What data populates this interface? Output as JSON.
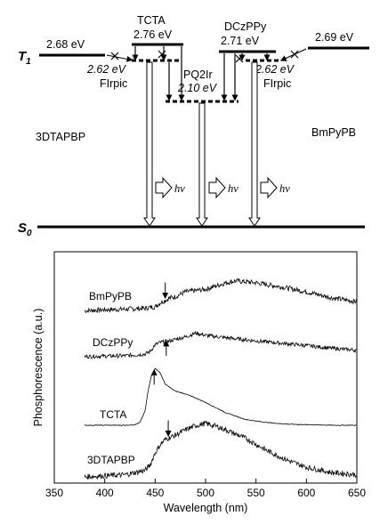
{
  "diagram": {
    "levels": {
      "dtapbp_t1": "2.68 eV",
      "tcta_t1": "2.76 eV",
      "dczppy_t1": "2.71 eV",
      "bmpypb_t1": "2.69 eV",
      "firpic_left": "2.62 eV",
      "firpic_right": "2.62 eV",
      "pq2ir": "2.10 eV"
    },
    "labels": {
      "tcta": "TCTA",
      "dczppy": "DCzPPy",
      "firpic_left": "FIrpic",
      "firpic_right": "FIrpic",
      "pq2ir": "PQ2Ir",
      "dtapbp": "3DTAPBP",
      "bmpypb": "BmPyPB",
      "hv": "hν",
      "t1_main": "T",
      "t1_sub": "1",
      "s0_main": "S",
      "s0_sub": "0"
    }
  },
  "chart_data": {
    "type": "line",
    "xlabel": "Wavelength (nm)",
    "ylabel": "Phosphorescence (a.u.)",
    "xlim": [
      350,
      650
    ],
    "x_ticks": [
      350,
      400,
      450,
      500,
      550,
      600,
      650
    ],
    "series": [
      {
        "name": "BmPyPB",
        "x": [
          380,
          400,
          420,
          440,
          450,
          455,
          460,
          465,
          470,
          480,
          500,
          520,
          530,
          550,
          575,
          600,
          625,
          650
        ],
        "values": [
          0.12,
          0.14,
          0.15,
          0.17,
          0.2,
          0.28,
          0.33,
          0.38,
          0.4,
          0.5,
          0.55,
          0.68,
          0.72,
          0.68,
          0.6,
          0.5,
          0.38,
          0.3
        ],
        "arrow_x": 460,
        "arrow_dir": "down"
      },
      {
        "name": "DCzPPy",
        "x": [
          380,
          400,
          420,
          440,
          445,
          450,
          455,
          460,
          465,
          470,
          480,
          490,
          500,
          520,
          550,
          575,
          600,
          625,
          650
        ],
        "values": [
          0.12,
          0.13,
          0.14,
          0.18,
          0.25,
          0.42,
          0.48,
          0.5,
          0.52,
          0.56,
          0.62,
          0.72,
          0.66,
          0.6,
          0.52,
          0.46,
          0.4,
          0.33,
          0.28
        ],
        "arrow_x": 461,
        "arrow_dir": "up"
      },
      {
        "name": "TCTA",
        "x": [
          380,
          400,
          420,
          430,
          435,
          440,
          443,
          446,
          450,
          455,
          460,
          470,
          480,
          490,
          500,
          520,
          540,
          560,
          580,
          600,
          625,
          650
        ],
        "values": [
          0.0,
          0.0,
          0.0,
          0.01,
          0.05,
          0.25,
          0.6,
          0.85,
          1.0,
          0.92,
          0.72,
          0.6,
          0.55,
          0.48,
          0.4,
          0.22,
          0.1,
          0.05,
          0.02,
          0.01,
          0.0,
          0.0
        ],
        "arrow_x": 449,
        "arrow_dir": "up"
      },
      {
        "name": "3DTAPBP",
        "x": [
          380,
          400,
          420,
          440,
          445,
          450,
          455,
          460,
          470,
          480,
          490,
          500,
          510,
          520,
          540,
          560,
          580,
          600,
          625,
          650
        ],
        "values": [
          0.0,
          0.02,
          0.04,
          0.12,
          0.22,
          0.45,
          0.6,
          0.7,
          0.78,
          0.88,
          0.96,
          1.0,
          0.95,
          0.88,
          0.72,
          0.5,
          0.32,
          0.18,
          0.08,
          0.04
        ],
        "arrow_x": 463,
        "arrow_dir": "down"
      }
    ]
  }
}
